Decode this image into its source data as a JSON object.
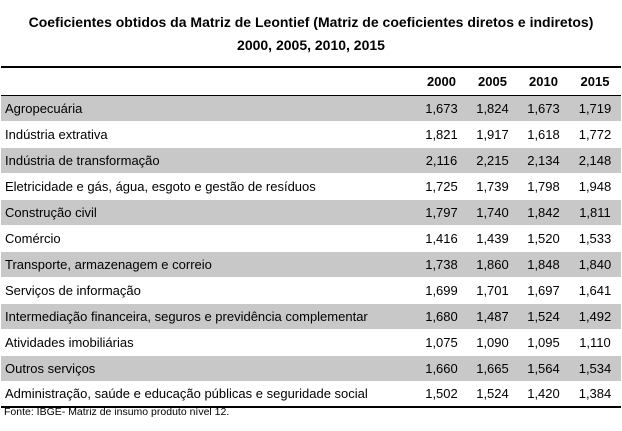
{
  "title": {
    "line1": "Coeficientes obtidos da Matriz de Leontief (Matriz de coeficientes diretos e indiretos)",
    "line2": "2000, 2005, 2010, 2015"
  },
  "table": {
    "columns": [
      "",
      "2000",
      "2005",
      "2010",
      "2015"
    ],
    "rows": [
      {
        "sector": "Agropecuária",
        "v2000": "1,673",
        "v2005": "1,824",
        "v2010": "1,673",
        "v2015": "1,719"
      },
      {
        "sector": "Indústria extrativa",
        "v2000": "1,821",
        "v2005": "1,917",
        "v2010": "1,618",
        "v2015": "1,772"
      },
      {
        "sector": "Indústria de transformação",
        "v2000": "2,116",
        "v2005": "2,215",
        "v2010": "2,134",
        "v2015": "2,148"
      },
      {
        "sector": "Eletricidade e gás, água, esgoto e gestão de resíduos",
        "v2000": "1,725",
        "v2005": "1,739",
        "v2010": "1,798",
        "v2015": "1,948"
      },
      {
        "sector": "Construção civil",
        "v2000": "1,797",
        "v2005": "1,740",
        "v2010": "1,842",
        "v2015": "1,811"
      },
      {
        "sector": "Comércio",
        "v2000": "1,416",
        "v2005": "1,439",
        "v2010": "1,520",
        "v2015": "1,533"
      },
      {
        "sector": "Transporte, armazenagem e correio",
        "v2000": "1,738",
        "v2005": "1,860",
        "v2010": "1,848",
        "v2015": "1,840"
      },
      {
        "sector": "Serviços de informação",
        "v2000": "1,699",
        "v2005": "1,701",
        "v2010": "1,697",
        "v2015": "1,641"
      },
      {
        "sector": "Intermediação financeira, seguros e previdência complementar",
        "v2000": "1,680",
        "v2005": "1,487",
        "v2010": "1,524",
        "v2015": "1,492"
      },
      {
        "sector": "Atividades imobiliárias",
        "v2000": "1,075",
        "v2005": "1,090",
        "v2010": "1,095",
        "v2015": "1,110"
      },
      {
        "sector": "Outros serviços",
        "v2000": "1,660",
        "v2005": "1,665",
        "v2010": "1,564",
        "v2015": "1,534"
      },
      {
        "sector": "Administração, saúde e educação públicas e seguridade social",
        "v2000": "1,502",
        "v2005": "1,524",
        "v2010": "1,420",
        "v2015": "1,384"
      }
    ],
    "shaded_row_color": "#c8c8c8"
  },
  "source": "Fonte: IBGE- Matriz de insumo produto nível 12."
}
